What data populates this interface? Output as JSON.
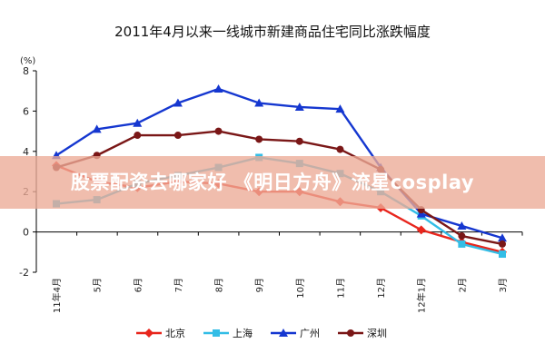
{
  "chart_data": {
    "type": "line",
    "title": "2011年4月以来一线城市新建商品住宅同比涨跌幅度",
    "unit": "(%)",
    "xlabel": "",
    "ylabel": "",
    "ylim": [
      -2,
      8
    ],
    "yticks": [
      -2,
      0,
      2,
      4,
      6,
      8
    ],
    "categories": [
      "11年4月",
      "5月",
      "6月",
      "7月",
      "8月",
      "9月",
      "10月",
      "11月",
      "12月",
      "12年1月",
      "2月",
      "3月"
    ],
    "legend_position": "bottom",
    "grid": false,
    "series": [
      {
        "name": "北京",
        "color": "#e8261d",
        "marker": "diamond",
        "values": [
          3.3,
          2.5,
          2.2,
          2.5,
          2.4,
          2.0,
          2.0,
          1.5,
          1.2,
          0.1,
          -0.5,
          -1.0
        ]
      },
      {
        "name": "上海",
        "color": "#33bde6",
        "marker": "square",
        "values": [
          1.4,
          1.6,
          2.4,
          2.8,
          3.2,
          3.7,
          3.4,
          2.9,
          2.0,
          0.8,
          -0.6,
          -1.1
        ]
      },
      {
        "name": "广州",
        "color": "#1537d0",
        "marker": "triangle",
        "values": [
          3.8,
          5.1,
          5.4,
          6.4,
          7.1,
          6.4,
          6.2,
          6.1,
          3.2,
          0.9,
          0.3,
          -0.3
        ]
      },
      {
        "name": "深圳",
        "color": "#7a1717",
        "marker": "circle",
        "values": [
          3.2,
          3.8,
          4.8,
          4.8,
          5.0,
          4.6,
          4.5,
          4.1,
          3.1,
          1.1,
          -0.2,
          -0.6
        ]
      }
    ]
  },
  "overlay": {
    "text": "股票配资去哪家好 《明日方舟》流星cosplay"
  }
}
